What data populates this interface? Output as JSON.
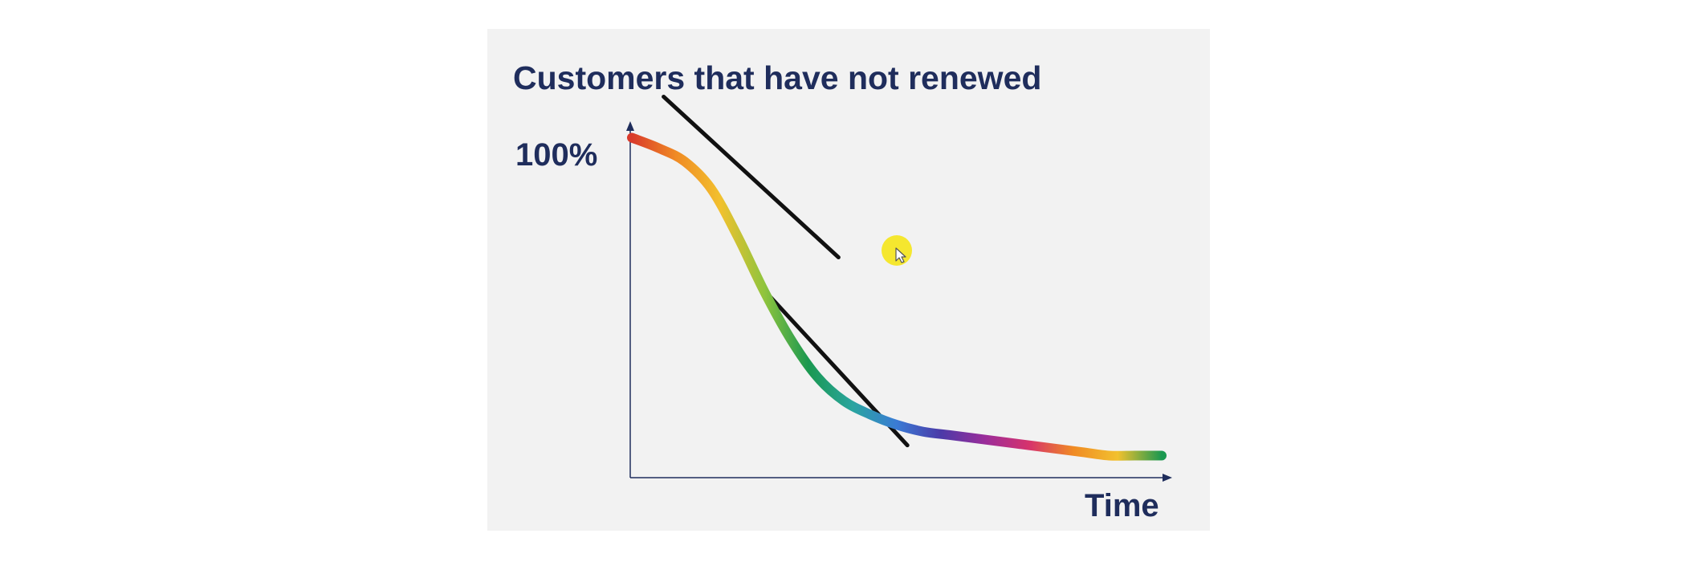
{
  "chart_data": {
    "type": "line",
    "title": "Customers that have not renewed",
    "xlabel": "Time",
    "ylabel": "",
    "y_tick_labels": [
      "100%"
    ],
    "x": [
      0,
      0.05,
      0.1,
      0.15,
      0.2,
      0.25,
      0.3,
      0.35,
      0.4,
      0.45,
      0.5,
      0.55,
      0.6,
      0.65,
      0.7,
      0.75,
      0.8,
      0.85,
      0.9,
      0.95,
      1.0
    ],
    "y": [
      0.99,
      0.96,
      0.92,
      0.84,
      0.7,
      0.54,
      0.4,
      0.29,
      0.22,
      0.18,
      0.15,
      0.13,
      0.12,
      0.11,
      0.1,
      0.09,
      0.08,
      0.07,
      0.06,
      0.06,
      0.06
    ],
    "ylim": [
      0,
      1.05
    ],
    "xlim": [
      0,
      1.0
    ],
    "grid": false,
    "legend": "none",
    "line_style": "rainbow gradient",
    "annotations": [
      {
        "type": "tangent-line",
        "from": [
          0.06,
          1.11
        ],
        "to": [
          0.39,
          0.64
        ]
      },
      {
        "type": "tangent-line",
        "from": [
          0.24,
          0.56
        ],
        "to": [
          0.52,
          0.09
        ]
      }
    ]
  },
  "colors": {
    "title": "#1f2d5c",
    "axes": "#1f2d5c",
    "tangent": "#111111",
    "background": "#f2f2f2",
    "cursor": "#f5e51a",
    "rainbow": [
      "#d93a2b",
      "#f08a24",
      "#f2c12e",
      "#8fc43d",
      "#1a9850",
      "#2aa5a0",
      "#3a7bd5",
      "#4b3aa8",
      "#9b2d9a",
      "#d6336c",
      "#f08a24",
      "#f2c12e",
      "#1a9850"
    ]
  },
  "icons": {
    "cursor": "pointer-cursor-icon"
  }
}
